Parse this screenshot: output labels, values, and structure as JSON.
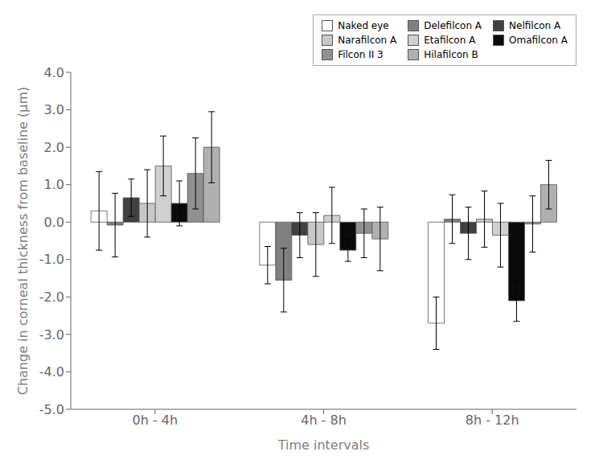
{
  "chart_data": {
    "type": "bar",
    "categories": [
      "0h - 4h",
      "4h - 8h",
      "8h - 12h"
    ],
    "xlabel": "Time intervals",
    "ylabel": "Change in corneal thickness from baseline (μm)",
    "ylim": [
      -5.0,
      4.0
    ],
    "yticks": [
      {
        "value": -5.0,
        "label": "-5.0"
      },
      {
        "value": -4.0,
        "label": "-4.0"
      },
      {
        "value": -3.0,
        "label": "-3.0"
      },
      {
        "value": -2.0,
        "label": "-2.0"
      },
      {
        "value": -1.0,
        "label": "-1.0"
      },
      {
        "value": 0.0,
        "label": "0.0"
      },
      {
        "value": 1.0,
        "label": "1.0"
      },
      {
        "value": 2.0,
        "label": "2.0"
      },
      {
        "value": 3.0,
        "label": "3.0"
      },
      {
        "value": 4.0,
        "label": "4.0"
      }
    ],
    "grid": false,
    "legend": "upper right",
    "series": [
      {
        "name": "Naked eye",
        "color": "#ffffff",
        "values": [
          0.3,
          -1.15,
          -2.7
        ],
        "errors": [
          1.05,
          0.5,
          0.7
        ]
      },
      {
        "name": "Delefilcon A",
        "color": "#808080",
        "values": [
          -0.08,
          -1.55,
          0.08
        ],
        "errors": [
          0.85,
          0.85,
          0.65
        ]
      },
      {
        "name": "Nelfilcon A",
        "color": "#404040",
        "values": [
          0.65,
          -0.35,
          -0.3
        ],
        "errors": [
          0.5,
          0.6,
          0.7
        ]
      },
      {
        "name": "Narafilcon A",
        "color": "#c8c8c8",
        "values": [
          0.5,
          -0.6,
          0.08
        ],
        "errors": [
          0.9,
          0.85,
          0.75
        ]
      },
      {
        "name": "Etafilcon A",
        "color": "#d0d0d0",
        "values": [
          1.5,
          0.18,
          -0.35
        ],
        "errors": [
          0.8,
          0.75,
          0.85
        ]
      },
      {
        "name": "Omafilcon A",
        "color": "#0a0a0a",
        "values": [
          0.5,
          -0.75,
          -2.1
        ],
        "errors": [
          0.6,
          0.3,
          0.55
        ]
      },
      {
        "name": "Filcon II 3",
        "color": "#909090",
        "values": [
          1.3,
          -0.3,
          -0.05
        ],
        "errors": [
          0.95,
          0.65,
          0.75
        ]
      },
      {
        "name": "Hilafilcon B",
        "color": "#b0b0b0",
        "values": [
          2.0,
          -0.45,
          1.0
        ],
        "errors": [
          0.95,
          0.85,
          0.65
        ]
      }
    ]
  }
}
